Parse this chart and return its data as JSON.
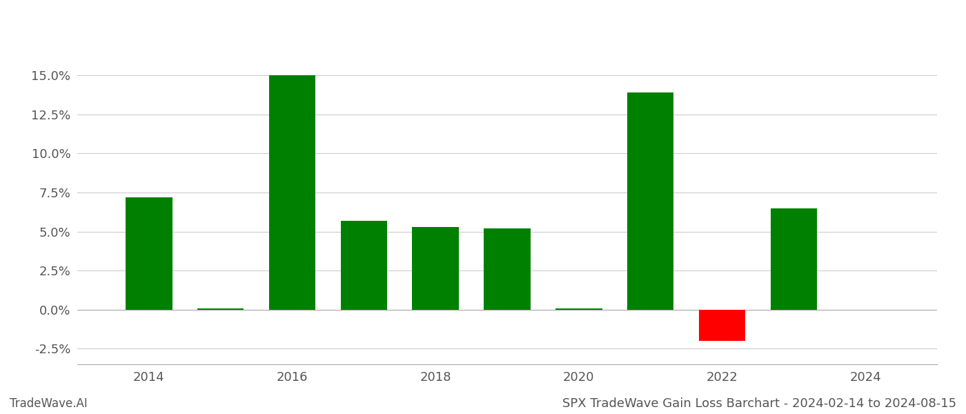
{
  "years": [
    2014,
    2015,
    2016,
    2017,
    2018,
    2019,
    2020,
    2021,
    2022,
    2023
  ],
  "values": [
    0.072,
    0.001,
    0.15,
    0.057,
    0.053,
    0.052,
    0.001,
    0.139,
    -0.02,
    0.065
  ],
  "bar_colors": [
    "#008000",
    "#008000",
    "#008000",
    "#008000",
    "#008000",
    "#008000",
    "#008000",
    "#008000",
    "#ff0000",
    "#008000"
  ],
  "title": "SPX TradeWave Gain Loss Barchart - 2024-02-14 to 2024-08-15",
  "ylabel": "",
  "xlabel": "",
  "ylim": [
    -0.035,
    0.185
  ],
  "yticks": [
    -0.025,
    0.0,
    0.025,
    0.05,
    0.075,
    0.1,
    0.125,
    0.15
  ],
  "background_color": "#ffffff",
  "grid_color": "#cccccc",
  "watermark_left": "TradeWave.AI",
  "bar_width": 0.65,
  "title_fontsize": 13,
  "tick_fontsize": 13,
  "watermark_fontsize": 12,
  "xlim_left": 2013.0,
  "xlim_right": 2025.0
}
